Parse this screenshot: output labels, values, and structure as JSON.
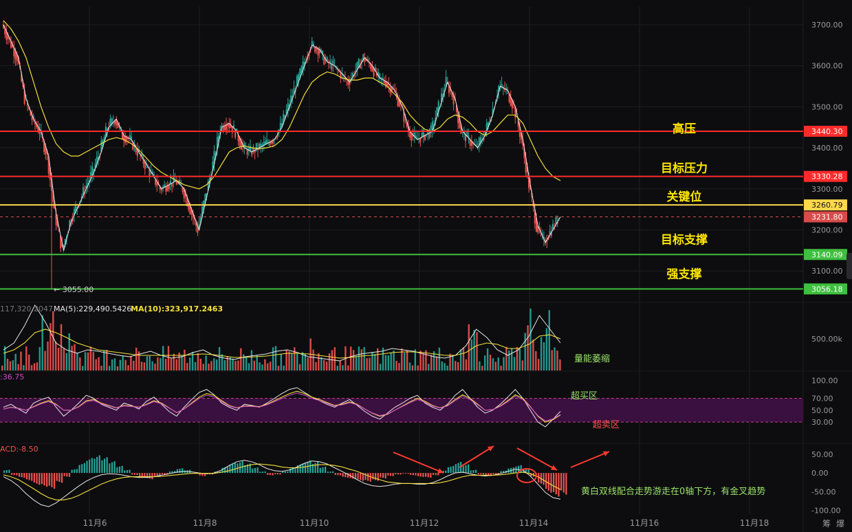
{
  "chart_data": [
    {
      "type": "candlestick",
      "panel": "price",
      "ylim": [
        3030,
        3740
      ],
      "y_ticks": [
        "3700.00",
        "3600.00",
        "3500.00",
        "3400.00",
        "3300.00",
        "3200.00",
        "3100.00"
      ],
      "x_ticks": [
        "11月6",
        "11月8",
        "11月10",
        "11月12",
        "11月14",
        "11月16",
        "11月18"
      ],
      "price_series": [
        3700,
        3660,
        3620,
        3520,
        3470,
        3440,
        3380,
        3240,
        3150,
        3220,
        3260,
        3300,
        3340,
        3390,
        3450,
        3470,
        3430,
        3420,
        3390,
        3360,
        3330,
        3300,
        3310,
        3320,
        3300,
        3250,
        3200,
        3280,
        3360,
        3450,
        3460,
        3440,
        3400,
        3390,
        3400,
        3410,
        3420,
        3450,
        3500,
        3550,
        3600,
        3650,
        3640,
        3610,
        3600,
        3580,
        3560,
        3590,
        3620,
        3600,
        3570,
        3560,
        3540,
        3500,
        3440,
        3420,
        3430,
        3440,
        3500,
        3560,
        3520,
        3440,
        3420,
        3400,
        3430,
        3480,
        3550,
        3540,
        3500,
        3420,
        3310,
        3210,
        3170,
        3200,
        3232
      ],
      "ma_slow": [
        3710,
        3690,
        3660,
        3620,
        3560,
        3500,
        3450,
        3410,
        3390,
        3380,
        3380,
        3390,
        3400,
        3410,
        3420,
        3425,
        3420,
        3410,
        3395,
        3375,
        3355,
        3340,
        3330,
        3320,
        3310,
        3305,
        3300,
        3310,
        3330,
        3360,
        3390,
        3400,
        3405,
        3400,
        3398,
        3400,
        3405,
        3420,
        3450,
        3490,
        3530,
        3560,
        3575,
        3585,
        3580,
        3570,
        3565,
        3565,
        3570,
        3570,
        3560,
        3550,
        3530,
        3510,
        3480,
        3460,
        3445,
        3440,
        3450,
        3470,
        3480,
        3475,
        3460,
        3440,
        3430,
        3440,
        3460,
        3480,
        3480,
        3460,
        3420,
        3380,
        3350,
        3330,
        3320
      ],
      "levels": [
        {
          "label": "高压",
          "value": "3440.30",
          "numeric": 3440.3,
          "color": "#ff2b2b"
        },
        {
          "label": "目标压力",
          "value": "3330.28",
          "numeric": 3330.28,
          "color": "#ff2b2b"
        },
        {
          "label": "关键位",
          "value": "3260.79",
          "numeric": 3260.79,
          "color": "#ffd84d"
        },
        {
          "label": "目标支撑",
          "value": "3140.09",
          "numeric": 3140.09,
          "color": "#3fbf3f"
        },
        {
          "label": "强支撑",
          "value": "3056.18",
          "numeric": 3056.18,
          "color": "#3fbf3f"
        }
      ],
      "current_price": {
        "value": "3231.80",
        "numeric": 3231.8
      },
      "low_marker": "← 3055.00",
      "low_numeric": 3055
    },
    {
      "type": "bar",
      "panel": "volume",
      "ma_labels": [
        "117,320.2047",
        "MA(5):229,490.5426",
        "MA(10):323,917.2463"
      ],
      "y_ticks": [
        "500.00k"
      ],
      "annotation": "量能萎缩"
    },
    {
      "type": "line",
      "panel": "oscillator",
      "label": ":36.75",
      "y_ticks": [
        "100.00",
        "70.00",
        "50.00",
        "30.00"
      ],
      "ylim": [
        0,
        110
      ],
      "band": [
        30,
        70
      ],
      "annotations": {
        "overbought": "超买区",
        "oversold": "超卖区"
      },
      "series_white": [
        55,
        60,
        52,
        45,
        62,
        68,
        72,
        55,
        40,
        50,
        62,
        75,
        70,
        60,
        55,
        50,
        62,
        58,
        52,
        65,
        72,
        60,
        48,
        40,
        55,
        68,
        80,
        85,
        76,
        62,
        55,
        50,
        60,
        58,
        55,
        62,
        70,
        78,
        85,
        88,
        80,
        72,
        66,
        60,
        55,
        62,
        68,
        58,
        48,
        40,
        35,
        45,
        55,
        62,
        70,
        75,
        62,
        55,
        50,
        60,
        75,
        85,
        70,
        55,
        45,
        50,
        60,
        72,
        85,
        70,
        50,
        30,
        22,
        35,
        48
      ],
      "series_yellow": [
        52,
        55,
        53,
        50,
        56,
        62,
        66,
        60,
        50,
        50,
        56,
        66,
        68,
        62,
        58,
        54,
        58,
        57,
        55,
        60,
        66,
        62,
        54,
        46,
        52,
        62,
        72,
        78,
        75,
        66,
        58,
        54,
        57,
        57,
        56,
        60,
        66,
        72,
        78,
        82,
        78,
        72,
        68,
        63,
        58,
        60,
        64,
        60,
        52,
        45,
        40,
        43,
        50,
        57,
        64,
        70,
        65,
        58,
        54,
        58,
        68,
        76,
        70,
        60,
        50,
        51,
        57,
        66,
        76,
        70,
        56,
        40,
        30,
        34,
        42
      ]
    },
    {
      "type": "bar",
      "panel": "macd",
      "label": "ACD:-8.50",
      "y_ticks": [
        "50.00",
        "0.00",
        "-50.00",
        "-100.00"
      ],
      "ylim": [
        -110,
        70
      ],
      "annotation": "黄白双线配合走势游走在0轴下方，有金叉趋势",
      "hist": [
        8,
        -6,
        -12,
        -20,
        -30,
        -35,
        -40,
        -25,
        -10,
        10,
        25,
        38,
        45,
        40,
        30,
        18,
        8,
        -5,
        -12,
        -16,
        -10,
        -4,
        5,
        12,
        8,
        -2,
        -8,
        -4,
        4,
        16,
        26,
        30,
        24,
        14,
        4,
        -6,
        -4,
        4,
        14,
        24,
        32,
        28,
        16,
        4,
        -6,
        -12,
        -16,
        -20,
        -22,
        -20,
        -14,
        -8,
        -4,
        -2,
        -6,
        -10,
        -12,
        -6,
        6,
        18,
        28,
        22,
        8,
        -4,
        -8,
        -4,
        6,
        14,
        20,
        10,
        -10,
        -30,
        -50,
        -60,
        -55
      ],
      "dif": [
        -10,
        -20,
        -35,
        -55,
        -72,
        -85,
        -90,
        -80,
        -65,
        -50,
        -35,
        -22,
        -12,
        -5,
        -2,
        -3,
        -6,
        -10,
        -12,
        -12,
        -10,
        -6,
        -2,
        2,
        4,
        3,
        0,
        -2,
        0,
        8,
        20,
        30,
        34,
        30,
        22,
        12,
        6,
        4,
        8,
        16,
        26,
        32,
        30,
        24,
        14,
        4,
        -6,
        -18,
        -28,
        -34,
        -36,
        -34,
        -30,
        -28,
        -28,
        -30,
        -30,
        -26,
        -18,
        -8,
        0,
        2,
        -2,
        -6,
        -8,
        -6,
        -2,
        4,
        10,
        8,
        -8,
        -30,
        -52,
        -66,
        -70
      ],
      "dea": [
        -5,
        -10,
        -18,
        -30,
        -42,
        -55,
        -66,
        -72,
        -72,
        -68,
        -60,
        -50,
        -40,
        -30,
        -22,
        -16,
        -12,
        -10,
        -10,
        -10,
        -10,
        -9,
        -7,
        -5,
        -3,
        -1,
        -1,
        -1,
        -1,
        2,
        6,
        12,
        18,
        22,
        24,
        22,
        20,
        16,
        14,
        14,
        16,
        20,
        22,
        22,
        20,
        16,
        10,
        4,
        -4,
        -12,
        -18,
        -24,
        -26,
        -28,
        -28,
        -28,
        -28,
        -28,
        -26,
        -22,
        -16,
        -10,
        -6,
        -6,
        -6,
        -6,
        -5,
        -3,
        0,
        2,
        -2,
        -10,
        -22,
        -34,
        -44
      ]
    }
  ],
  "colors": {
    "background": "#0d0d0f",
    "grid": "#1e1e22",
    "up": "#26a69a",
    "down": "#ef5350",
    "ma_white": "#e8e8e8",
    "ma_yellow": "#f5e13c",
    "level_red": "#ff2b2b",
    "level_yellow": "#ffd84d",
    "level_green": "#3fbf3f",
    "osc_band": "#3a1040",
    "annotation_green": "#9be36a",
    "annotation_red": "#ff4d4d",
    "arrow_red": "#ff3b30"
  },
  "corner_labels": [
    "筹",
    "爆"
  ]
}
